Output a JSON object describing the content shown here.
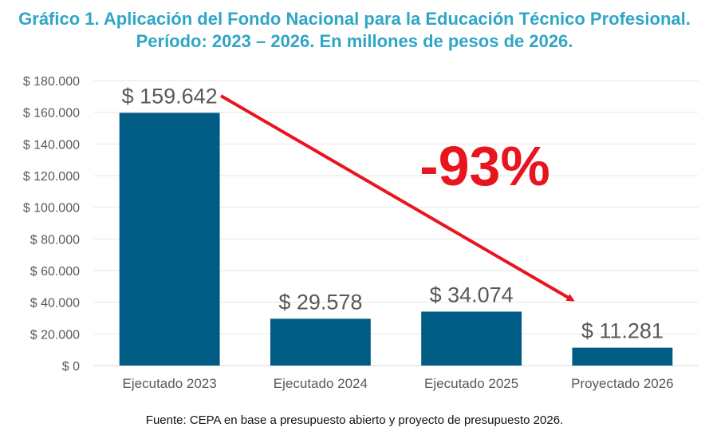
{
  "chart_data": {
    "type": "bar",
    "title_line1": "Gráfico 1. Aplicación del Fondo Nacional para la Educación Técnico Profesional.",
    "title_line2": "Período: 2023 – 2026. En millones de pesos de 2026.",
    "categories": [
      "Ejecutado 2023",
      "Ejecutado 2024",
      "Ejecutado 2025",
      "Proyectado 2026"
    ],
    "values": [
      159642,
      29578,
      34074,
      11281
    ],
    "value_labels": [
      "$ 159.642",
      "$ 29.578",
      "$ 34.074",
      "$ 11.281"
    ],
    "y_ticks": [
      0,
      20000,
      40000,
      60000,
      80000,
      100000,
      120000,
      140000,
      160000,
      180000
    ],
    "y_tick_labels": [
      "$ 0",
      "$ 20.000",
      "$ 40.000",
      "$ 60.000",
      "$ 80.000",
      "$ 100.000",
      "$ 120.000",
      "$ 140.000",
      "$ 160.000",
      "$ 180.000"
    ],
    "ylim": [
      0,
      180000
    ],
    "annotation": "-93%",
    "grid": true,
    "xlabel": "",
    "ylabel": ""
  },
  "source": "Fuente: CEPA en base a presupuesto abierto y proyecto de presupuesto 2026.",
  "colors": {
    "title": "#2fa6c6",
    "bar": "#005b85",
    "arrow": "#e8141e",
    "grid": "#e6e6e6",
    "text": "#595959"
  }
}
